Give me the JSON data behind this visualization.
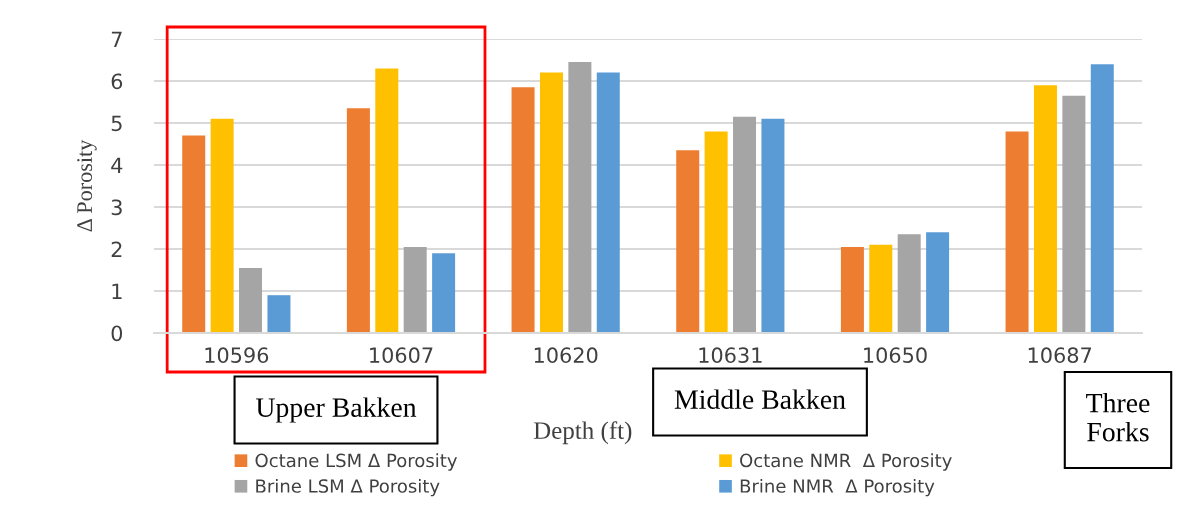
{
  "chart_data": {
    "type": "bar",
    "categories": [
      "10596",
      "10607",
      "10620",
      "10631",
      "10650",
      "10687"
    ],
    "series": [
      {
        "name": "Octane LSM Δ Porosity",
        "color": "#ed7d31",
        "values": [
          4.7,
          5.35,
          5.85,
          4.35,
          2.05,
          4.8
        ]
      },
      {
        "name": "Octane NMR  Δ Porosity",
        "color": "#ffc000",
        "values": [
          5.1,
          6.3,
          6.2,
          4.8,
          2.1,
          5.9
        ]
      },
      {
        "name": "Brine LSM Δ Porosity",
        "color": "#a5a5a5",
        "values": [
          1.55,
          2.05,
          6.45,
          5.15,
          2.35,
          5.65
        ]
      },
      {
        "name": "Brine NMR  Δ Porosity",
        "color": "#5b9bd5",
        "values": [
          0.9,
          1.9,
          6.2,
          5.1,
          2.4,
          6.4
        ]
      }
    ],
    "xlabel": "Depth (ft)",
    "ylabel": "Δ Porosity",
    "ylim": [
      0,
      7
    ],
    "yticks": [
      0,
      1,
      2,
      3,
      4,
      5,
      6,
      7
    ],
    "grid": "y",
    "legend": "bottom",
    "annotations": [
      "Upper Bakken",
      "Middle Bakken",
      "Three\nForks"
    ]
  }
}
